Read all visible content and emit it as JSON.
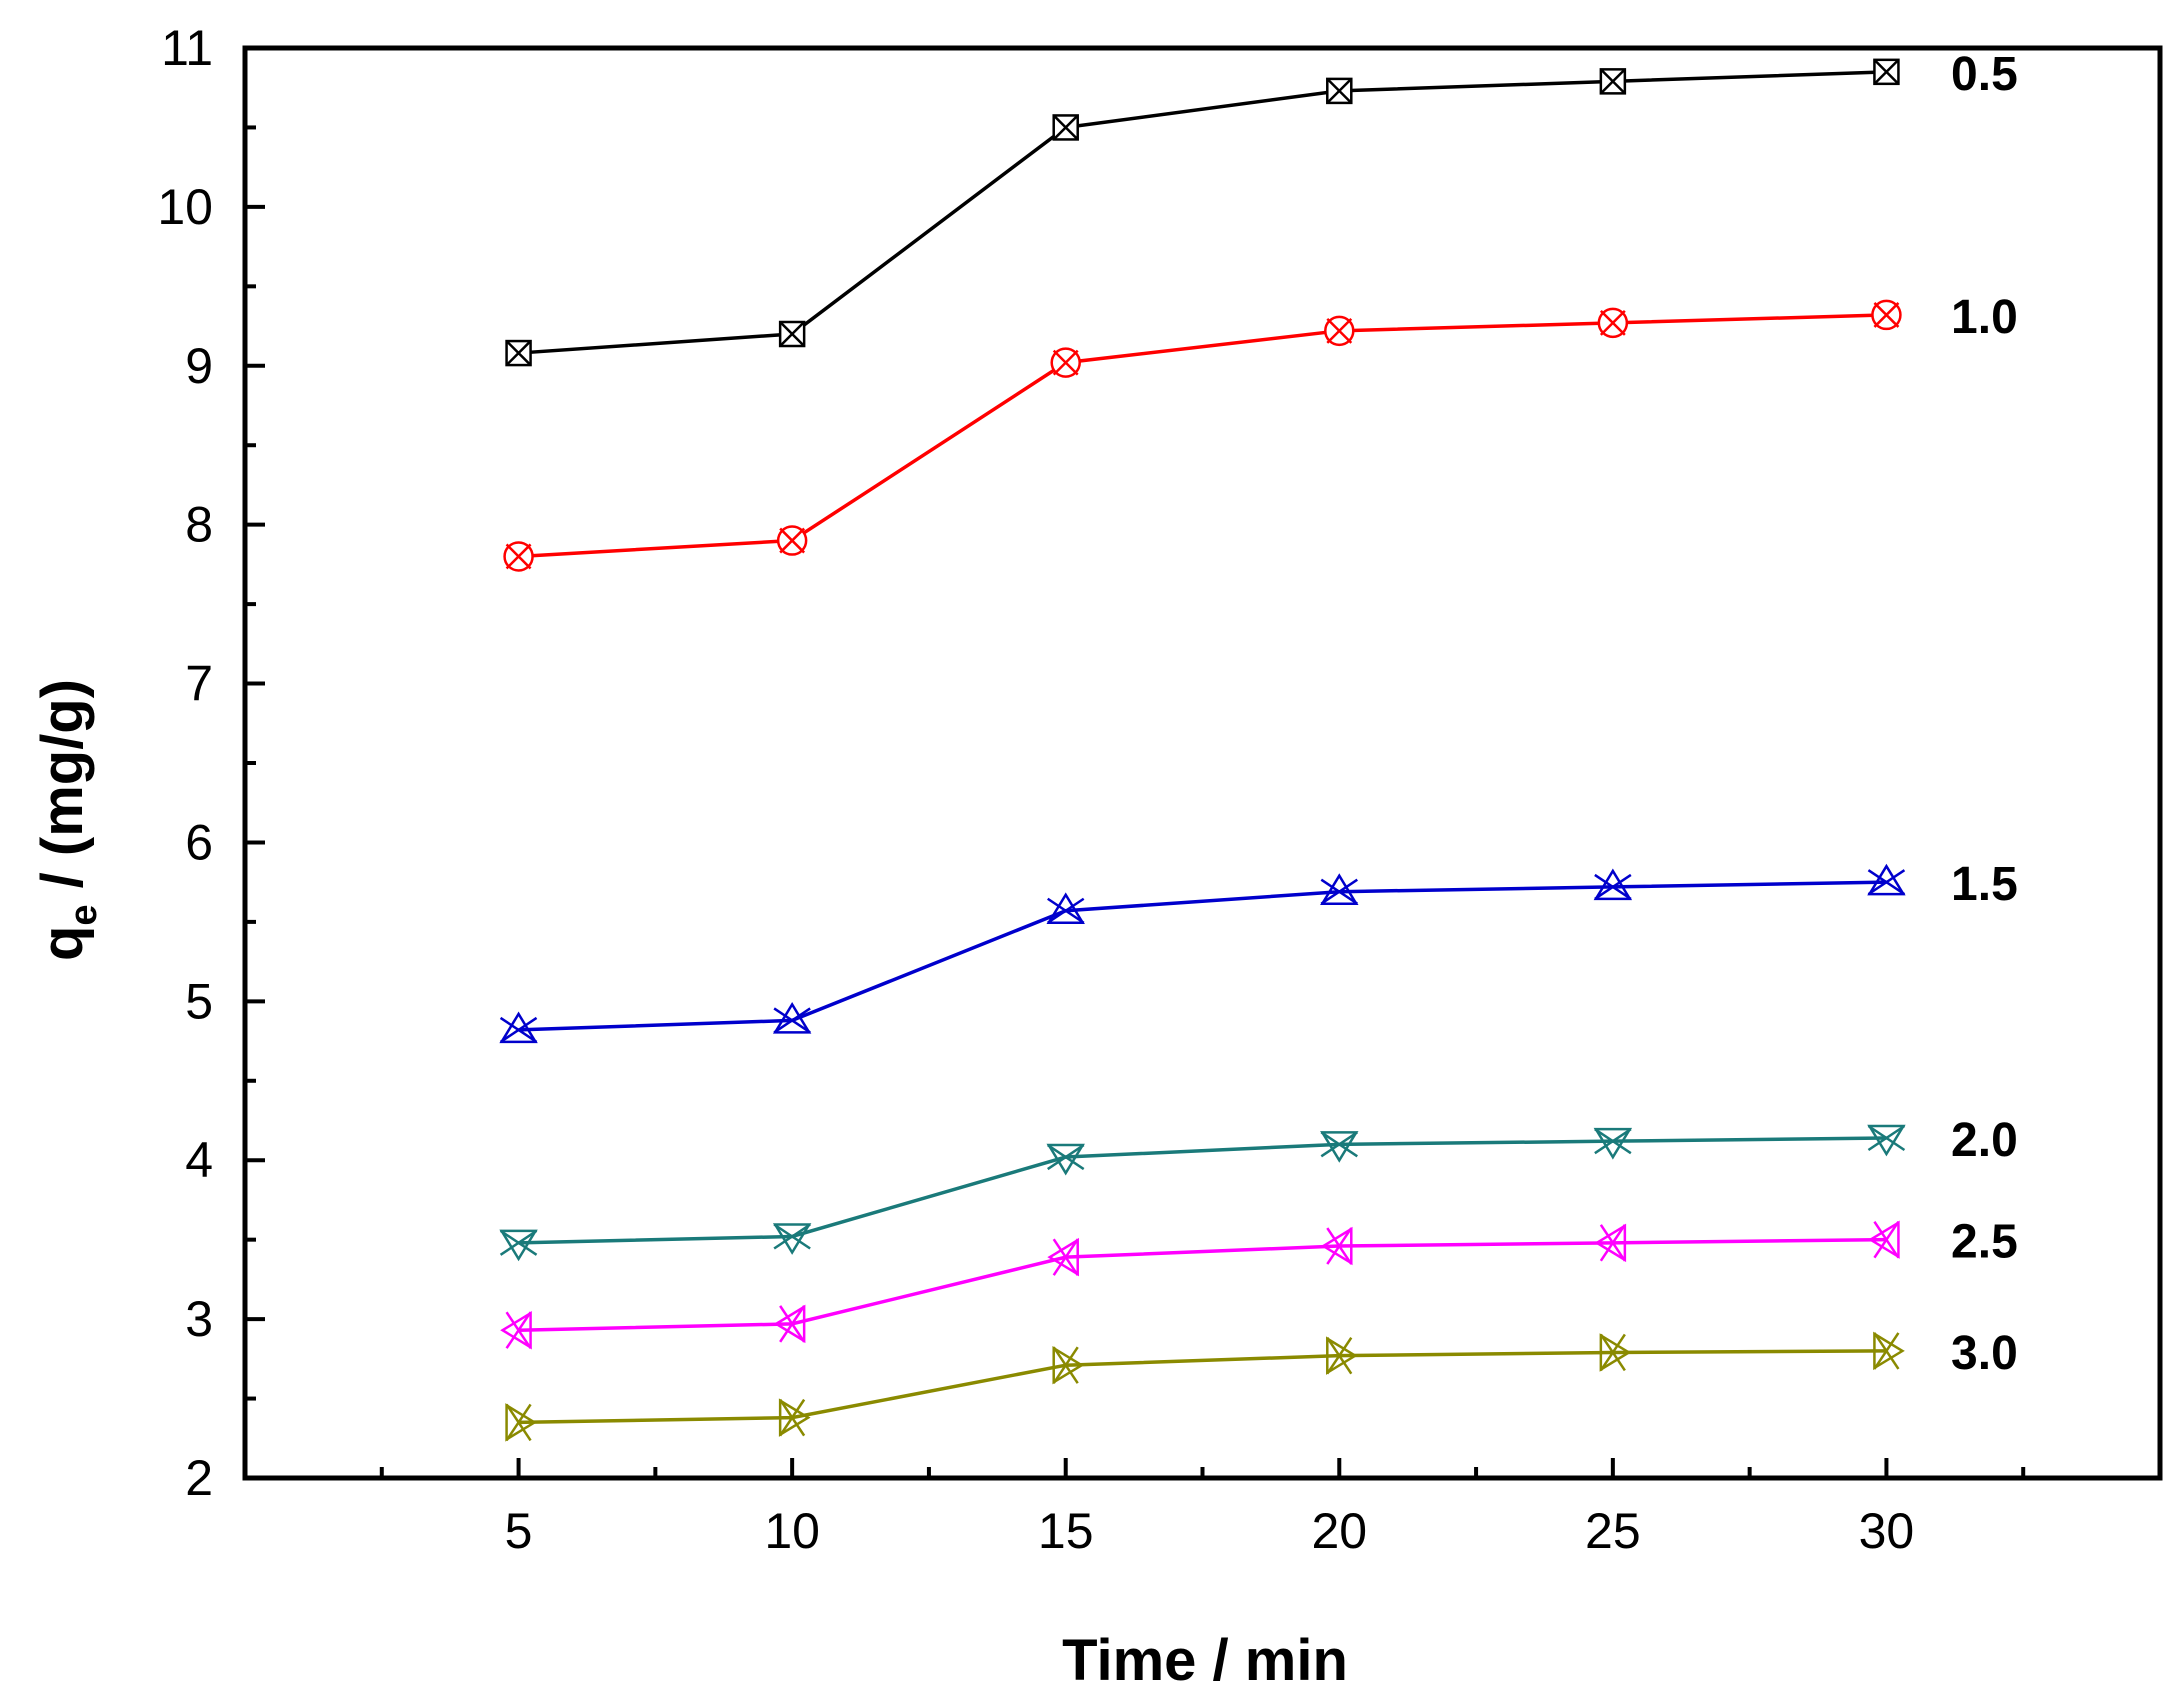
{
  "chart_data": {
    "type": "line",
    "title": "",
    "xlabel": "Time / min",
    "ylabel_main": "q",
    "ylabel_sub": "e",
    "ylabel_rest": " / (mg/g)",
    "xlim": [
      0,
      35
    ],
    "ylim": [
      2,
      11
    ],
    "x": [
      5,
      10,
      15,
      20,
      25,
      30
    ],
    "xticks": [
      5,
      10,
      15,
      20,
      25,
      30
    ],
    "yticks": [
      2,
      3,
      4,
      5,
      6,
      7,
      8,
      9,
      10,
      11
    ],
    "grid": false,
    "series": [
      {
        "name": "0.5",
        "color": "#000000",
        "marker": "square-x",
        "values": [
          9.08,
          9.2,
          10.5,
          10.73,
          10.79,
          10.85
        ]
      },
      {
        "name": "1.0",
        "color": "#ff0000",
        "marker": "circle-x",
        "values": [
          7.8,
          7.9,
          9.02,
          9.22,
          9.27,
          9.32
        ]
      },
      {
        "name": "1.5",
        "color": "#0000cc",
        "marker": "triangle-x",
        "values": [
          4.82,
          4.88,
          5.57,
          5.69,
          5.72,
          5.75
        ]
      },
      {
        "name": "2.0",
        "color": "#1a7a7a",
        "marker": "tri-down-x",
        "values": [
          3.48,
          3.52,
          4.02,
          4.1,
          4.12,
          4.14
        ]
      },
      {
        "name": "2.5",
        "color": "#ff00ff",
        "marker": "tri-left-x",
        "values": [
          2.93,
          2.97,
          3.39,
          3.46,
          3.48,
          3.5
        ]
      },
      {
        "name": "3.0",
        "color": "#8a8a00",
        "marker": "tri-right-x",
        "values": [
          2.35,
          2.38,
          2.71,
          2.77,
          2.79,
          2.8
        ]
      }
    ]
  }
}
